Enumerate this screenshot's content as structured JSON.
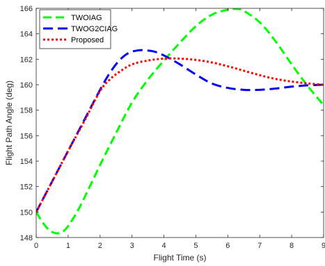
{
  "chart_data": {
    "type": "line",
    "title": "",
    "xlabel": "Flight Time (s)",
    "ylabel": "Flight Path Angle (deg)",
    "xlim": [
      0,
      9
    ],
    "ylim": [
      148,
      166
    ],
    "xticks": [
      0,
      1,
      2,
      3,
      4,
      5,
      6,
      7,
      8,
      9
    ],
    "yticks": [
      148,
      150,
      152,
      154,
      156,
      158,
      160,
      162,
      164,
      166
    ],
    "grid": false,
    "legend_position": "top-left",
    "series": [
      {
        "name": "TWOIAG",
        "color": "#00ff00",
        "dash": "12,6",
        "x": [
          0,
          0.2,
          0.4,
          0.6,
          0.8,
          1.0,
          1.3,
          1.6,
          2.0,
          2.5,
          3.0,
          3.5,
          4.0,
          4.5,
          5.0,
          5.5,
          6.0,
          6.25,
          6.5,
          7.0,
          7.5,
          8.0,
          8.5,
          9.0
        ],
        "y": [
          150.0,
          149.2,
          148.6,
          148.35,
          148.4,
          148.9,
          150.1,
          151.6,
          153.7,
          156.2,
          158.6,
          160.4,
          161.9,
          163.3,
          164.6,
          165.5,
          165.9,
          165.95,
          165.8,
          164.9,
          163.4,
          161.6,
          159.9,
          158.4
        ]
      },
      {
        "name": "TWOG2CIAG",
        "color": "#0000ff",
        "dash": "14,7",
        "x": [
          0,
          0.5,
          1.0,
          1.5,
          2.0,
          2.3,
          2.6,
          2.9,
          3.2,
          3.4,
          3.7,
          4.0,
          4.5,
          5.0,
          5.5,
          6.0,
          6.5,
          7.0,
          7.5,
          8.0,
          8.5,
          9.0
        ],
        "y": [
          150.0,
          152.4,
          154.8,
          157.2,
          159.6,
          160.9,
          161.9,
          162.5,
          162.7,
          162.7,
          162.6,
          162.3,
          161.6,
          160.8,
          160.1,
          159.75,
          159.6,
          159.6,
          159.7,
          159.85,
          159.95,
          160.0
        ]
      },
      {
        "name": "Proposed",
        "color": "#ff0000",
        "dash": "3,3",
        "x": [
          0,
          0.5,
          1.0,
          1.5,
          2.0,
          2.3,
          2.6,
          3.0,
          3.5,
          4.0,
          4.5,
          5.0,
          5.5,
          6.0,
          6.5,
          7.0,
          7.5,
          8.0,
          8.5,
          9.0
        ],
        "y": [
          150.0,
          152.4,
          154.8,
          157.1,
          159.5,
          160.4,
          161.0,
          161.6,
          161.9,
          162.05,
          162.05,
          161.95,
          161.75,
          161.45,
          161.1,
          160.75,
          160.45,
          160.25,
          160.1,
          160.0
        ]
      }
    ]
  }
}
